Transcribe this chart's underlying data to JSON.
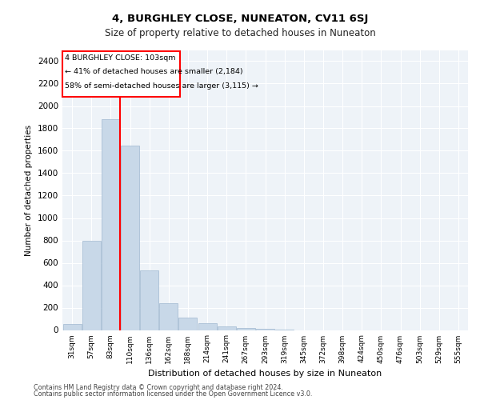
{
  "title": "4, BURGHLEY CLOSE, NUNEATON, CV11 6SJ",
  "subtitle": "Size of property relative to detached houses in Nuneaton",
  "xlabel": "Distribution of detached houses by size in Nuneaton",
  "ylabel": "Number of detached properties",
  "bar_color": "#c8d8e8",
  "bar_edge_color": "#a0b8d0",
  "background_color": "#eef3f8",
  "grid_color": "#ffffff",
  "categories": [
    "31sqm",
    "57sqm",
    "83sqm",
    "110sqm",
    "136sqm",
    "162sqm",
    "188sqm",
    "214sqm",
    "241sqm",
    "267sqm",
    "293sqm",
    "319sqm",
    "345sqm",
    "372sqm",
    "398sqm",
    "424sqm",
    "450sqm",
    "476sqm",
    "503sqm",
    "529sqm",
    "555sqm"
  ],
  "values": [
    55,
    800,
    1880,
    1645,
    530,
    242,
    110,
    58,
    35,
    18,
    8,
    4,
    0,
    0,
    0,
    0,
    0,
    0,
    0,
    0,
    0
  ],
  "ylim": [
    0,
    2500
  ],
  "yticks": [
    0,
    200,
    400,
    600,
    800,
    1000,
    1200,
    1400,
    1600,
    1800,
    2000,
    2200,
    2400
  ],
  "annotation_line1": "4 BURGHLEY CLOSE: 103sqm",
  "annotation_line2": "← 41% of detached houses are smaller (2,184)",
  "annotation_line3": "58% of semi-detached houses are larger (3,115) →",
  "vline_x_index": 2.5,
  "footer1": "Contains HM Land Registry data © Crown copyright and database right 2024.",
  "footer2": "Contains public sector information licensed under the Open Government Licence v3.0."
}
